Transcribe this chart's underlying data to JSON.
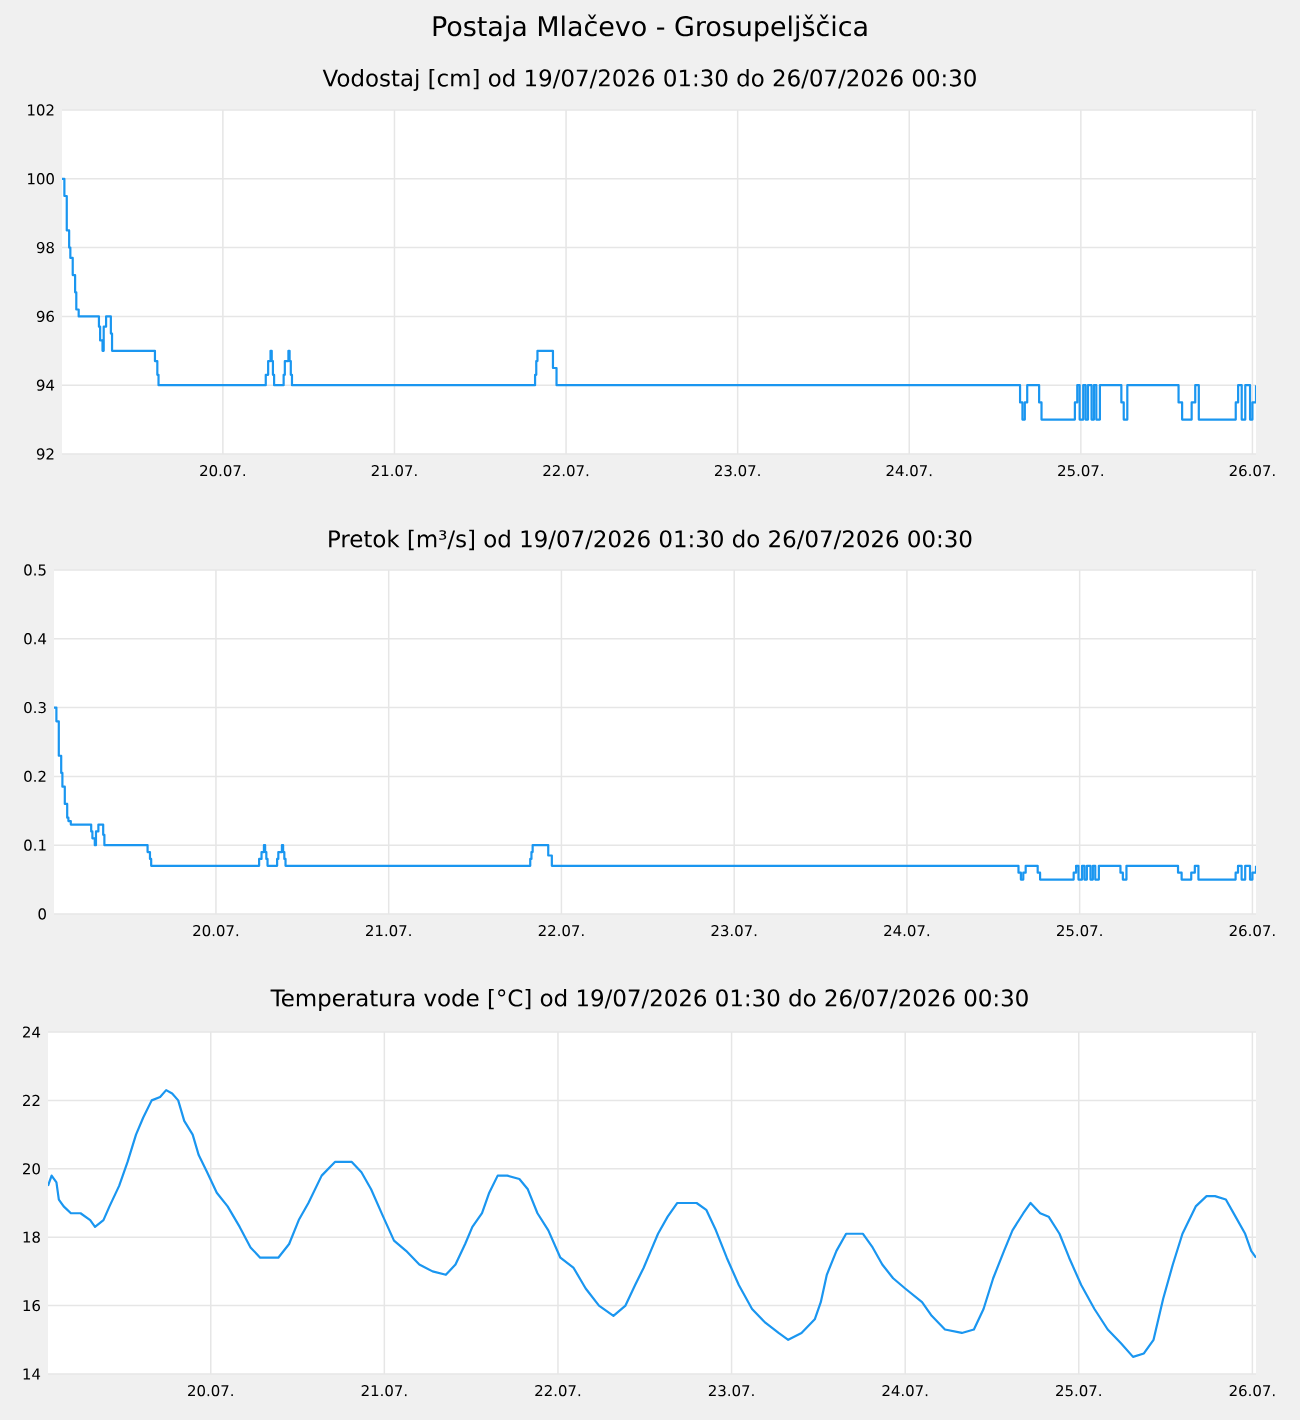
{
  "chart_data": [
    {
      "type": "step",
      "title": "Postaja Mlačevo - Grosupeljščica",
      "subtitle": "Vodostaj [cm] od 19/07/2026 01:30 do 26/07/2026 00:30",
      "color": "#1a96f0",
      "grid": true,
      "xlim": [
        "2026-07-19T01:30",
        "2026-07-26T00:30"
      ],
      "ylim": [
        92,
        102
      ],
      "yticks": [
        92,
        94,
        96,
        98,
        100,
        102
      ],
      "xticks": [
        {
          "value": "2026-07-20",
          "label": "20.07."
        },
        {
          "value": "2026-07-21",
          "label": "21.07."
        },
        {
          "value": "2026-07-22",
          "label": "22.07."
        },
        {
          "value": "2026-07-23",
          "label": "23.07."
        },
        {
          "value": "2026-07-24",
          "label": "24.07."
        },
        {
          "value": "2026-07-25",
          "label": "25.07."
        },
        {
          "value": "2026-07-26",
          "label": "26.07."
        }
      ],
      "x": [
        "2026-07-19T01:30",
        "2026-07-19T01:50",
        "2026-07-19T02:10",
        "2026-07-19T02:30",
        "2026-07-19T02:40",
        "2026-07-19T03:00",
        "2026-07-19T03:20",
        "2026-07-19T03:30",
        "2026-07-19T03:50",
        "2026-07-19T06:40",
        "2026-07-19T06:50",
        "2026-07-19T07:10",
        "2026-07-19T07:20",
        "2026-07-19T07:40",
        "2026-07-19T08:20",
        "2026-07-19T08:30",
        "2026-07-19T14:30",
        "2026-07-19T14:50",
        "2026-07-19T15:00",
        "2026-07-20T06:00",
        "2026-07-20T06:20",
        "2026-07-20T06:40",
        "2026-07-20T06:50",
        "2026-07-20T07:00",
        "2026-07-20T07:10",
        "2026-07-20T08:30",
        "2026-07-20T08:40",
        "2026-07-20T09:10",
        "2026-07-20T09:20",
        "2026-07-20T09:30",
        "2026-07-20T09:40",
        "2026-07-21T19:40",
        "2026-07-21T19:50",
        "2026-07-21T20:00",
        "2026-07-21T22:10",
        "2026-07-21T22:40",
        "2026-07-24T15:30",
        "2026-07-24T15:50",
        "2026-07-24T16:10",
        "2026-07-24T16:30",
        "2026-07-24T18:10",
        "2026-07-24T18:30",
        "2026-07-24T23:10",
        "2026-07-24T23:30",
        "2026-07-24T23:50",
        "2026-07-25T00:20",
        "2026-07-25T00:40",
        "2026-07-25T01:00",
        "2026-07-25T01:30",
        "2026-07-25T01:50",
        "2026-07-25T02:10",
        "2026-07-25T02:40",
        "2026-07-25T05:40",
        "2026-07-25T06:00",
        "2026-07-25T06:30",
        "2026-07-25T13:40",
        "2026-07-25T14:10",
        "2026-07-25T15:30",
        "2026-07-25T16:00",
        "2026-07-25T16:30",
        "2026-07-25T21:40",
        "2026-07-25T22:00",
        "2026-07-25T22:30",
        "2026-07-25T23:00",
        "2026-07-25T23:40",
        "2026-07-26T00:00",
        "2026-07-26T00:30"
      ],
      "values": [
        100,
        99.5,
        98.5,
        98,
        97.7,
        97.2,
        96.7,
        96.2,
        96,
        95.7,
        95.3,
        95,
        95.7,
        96,
        95.5,
        95,
        94.7,
        94.3,
        94,
        94.3,
        94.7,
        95,
        94.7,
        94.3,
        94,
        94.3,
        94.7,
        95,
        94.7,
        94.3,
        94,
        94.3,
        94.7,
        95,
        94.5,
        94,
        93.5,
        93,
        93.5,
        94,
        93.5,
        93,
        93.5,
        94,
        93,
        94,
        93,
        94,
        93,
        94,
        93,
        94,
        93.5,
        93,
        94,
        93.5,
        93,
        93.5,
        94,
        93,
        93.5,
        94,
        93,
        94,
        93,
        93.5,
        94
      ]
    },
    {
      "type": "step",
      "title": "Pretok [m³/s] od 19/07/2026 01:30 do 26/07/2026 00:30",
      "color": "#1a96f0",
      "grid": true,
      "xlim": [
        "2026-07-19T01:30",
        "2026-07-26T00:30"
      ],
      "ylim": [
        0,
        0.5
      ],
      "yticks": [
        0,
        0.1,
        0.2,
        0.3,
        0.4,
        0.5
      ],
      "xticks": [
        {
          "value": "2026-07-20",
          "label": "20.07."
        },
        {
          "value": "2026-07-21",
          "label": "21.07."
        },
        {
          "value": "2026-07-22",
          "label": "22.07."
        },
        {
          "value": "2026-07-23",
          "label": "23.07."
        },
        {
          "value": "2026-07-24",
          "label": "24.07."
        },
        {
          "value": "2026-07-25",
          "label": "25.07."
        },
        {
          "value": "2026-07-26",
          "label": "26.07."
        }
      ],
      "x": [
        "2026-07-19T01:30",
        "2026-07-19T01:50",
        "2026-07-19T02:10",
        "2026-07-19T02:30",
        "2026-07-19T02:40",
        "2026-07-19T03:00",
        "2026-07-19T03:20",
        "2026-07-19T03:30",
        "2026-07-19T03:50",
        "2026-07-19T06:40",
        "2026-07-19T06:50",
        "2026-07-19T07:10",
        "2026-07-19T07:20",
        "2026-07-19T07:40",
        "2026-07-19T08:20",
        "2026-07-19T08:30",
        "2026-07-19T14:30",
        "2026-07-19T14:50",
        "2026-07-19T15:00",
        "2026-07-20T06:00",
        "2026-07-20T06:20",
        "2026-07-20T06:40",
        "2026-07-20T06:50",
        "2026-07-20T07:00",
        "2026-07-20T07:10",
        "2026-07-20T08:30",
        "2026-07-20T08:40",
        "2026-07-20T09:10",
        "2026-07-20T09:20",
        "2026-07-20T09:30",
        "2026-07-20T09:40",
        "2026-07-21T19:40",
        "2026-07-21T19:50",
        "2026-07-21T20:00",
        "2026-07-21T22:10",
        "2026-07-21T22:40",
        "2026-07-24T15:30",
        "2026-07-24T15:50",
        "2026-07-24T16:10",
        "2026-07-24T16:30",
        "2026-07-24T18:10",
        "2026-07-24T18:30",
        "2026-07-24T23:10",
        "2026-07-24T23:30",
        "2026-07-24T23:50",
        "2026-07-25T00:20",
        "2026-07-25T00:40",
        "2026-07-25T01:00",
        "2026-07-25T01:30",
        "2026-07-25T01:50",
        "2026-07-25T02:10",
        "2026-07-25T02:40",
        "2026-07-25T05:40",
        "2026-07-25T06:00",
        "2026-07-25T06:30",
        "2026-07-25T13:40",
        "2026-07-25T14:10",
        "2026-07-25T15:30",
        "2026-07-25T16:00",
        "2026-07-25T16:30",
        "2026-07-25T21:40",
        "2026-07-25T22:00",
        "2026-07-25T22:30",
        "2026-07-25T23:00",
        "2026-07-25T23:40",
        "2026-07-26T00:00",
        "2026-07-26T00:30"
      ],
      "values": [
        0.3,
        0.28,
        0.23,
        0.205,
        0.185,
        0.16,
        0.14,
        0.135,
        0.13,
        0.12,
        0.11,
        0.1,
        0.12,
        0.13,
        0.115,
        0.1,
        0.09,
        0.08,
        0.07,
        0.08,
        0.09,
        0.1,
        0.09,
        0.08,
        0.07,
        0.08,
        0.09,
        0.1,
        0.09,
        0.08,
        0.07,
        0.08,
        0.09,
        0.1,
        0.085,
        0.07,
        0.06,
        0.05,
        0.06,
        0.07,
        0.06,
        0.05,
        0.06,
        0.07,
        0.05,
        0.07,
        0.05,
        0.07,
        0.05,
        0.07,
        0.05,
        0.07,
        0.06,
        0.05,
        0.07,
        0.06,
        0.05,
        0.06,
        0.07,
        0.05,
        0.06,
        0.07,
        0.05,
        0.07,
        0.05,
        0.06,
        0.07
      ]
    },
    {
      "type": "line",
      "title": "Temperatura vode [°C] od 19/07/2026 01:30 do 26/07/2026 00:30",
      "color": "#1a96f0",
      "grid": true,
      "xlim": [
        "2026-07-19T01:30",
        "2026-07-26T00:30"
      ],
      "ylim": [
        14,
        24
      ],
      "yticks": [
        14,
        16,
        18,
        20,
        22,
        24
      ],
      "xticks": [
        {
          "value": "2026-07-20",
          "label": "20.07."
        },
        {
          "value": "2026-07-21",
          "label": "21.07."
        },
        {
          "value": "2026-07-22",
          "label": "22.07."
        },
        {
          "value": "2026-07-23",
          "label": "23.07."
        },
        {
          "value": "2026-07-24",
          "label": "24.07."
        },
        {
          "value": "2026-07-25",
          "label": "25.07."
        },
        {
          "value": "2026-07-26",
          "label": "26.07."
        }
      ],
      "x": [
        "2026-07-19T01:30",
        "2026-07-19T02:00",
        "2026-07-19T02:40",
        "2026-07-19T03:00",
        "2026-07-19T03:40",
        "2026-07-19T04:40",
        "2026-07-19T06:00",
        "2026-07-19T06:40",
        "2026-07-19T07:20",
        "2026-07-19T08:00",
        "2026-07-19T09:10",
        "2026-07-19T10:00",
        "2026-07-19T11:20",
        "2026-07-19T12:30",
        "2026-07-19T13:40",
        "2026-07-19T14:40",
        "2026-07-19T15:50",
        "2026-07-19T17:00",
        "2026-07-19T17:50",
        "2026-07-19T18:40",
        "2026-07-19T19:30",
        "2026-07-19T20:20",
        "2026-07-19T21:30",
        "2026-07-19T22:20",
        "2026-07-19T23:30",
        "2026-07-20T00:50",
        "2026-07-20T02:20",
        "2026-07-20T04:00",
        "2026-07-20T05:30",
        "2026-07-20T06:50",
        "2026-07-20T09:20",
        "2026-07-20T10:50",
        "2026-07-20T12:10",
        "2026-07-20T13:30",
        "2026-07-20T15:20",
        "2026-07-20T17:10",
        "2026-07-20T19:30",
        "2026-07-20T20:50",
        "2026-07-20T22:10",
        "2026-07-20T23:50",
        "2026-07-21T01:20",
        "2026-07-21T03:00",
        "2026-07-21T04:50",
        "2026-07-21T06:40",
        "2026-07-21T08:30",
        "2026-07-21T09:50",
        "2026-07-21T11:10",
        "2026-07-21T12:10",
        "2026-07-21T13:30",
        "2026-07-21T14:30",
        "2026-07-21T15:40",
        "2026-07-21T17:00",
        "2026-07-21T18:40",
        "2026-07-21T19:50",
        "2026-07-21T21:10",
        "2026-07-21T22:40",
        "2026-07-22T00:20",
        "2026-07-22T02:10",
        "2026-07-22T03:50",
        "2026-07-22T05:40",
        "2026-07-22T07:40",
        "2026-07-22T09:20",
        "2026-07-22T10:40",
        "2026-07-22T11:50",
        "2026-07-22T12:50",
        "2026-07-22T13:50",
        "2026-07-22T15:10",
        "2026-07-22T16:30",
        "2026-07-22T19:10",
        "2026-07-22T20:30",
        "2026-07-22T21:50",
        "2026-07-22T23:20",
        "2026-07-23T01:00",
        "2026-07-23T02:50",
        "2026-07-23T04:40",
        "2026-07-23T06:30",
        "2026-07-23T07:50",
        "2026-07-23T09:40",
        "2026-07-23T11:30",
        "2026-07-23T12:20",
        "2026-07-23T13:10",
        "2026-07-23T14:30",
        "2026-07-23T15:50",
        "2026-07-23T18:10",
        "2026-07-23T19:30",
        "2026-07-23T20:50",
        "2026-07-23T22:20",
        "2026-07-24T00:00",
        "2026-07-24T02:20",
        "2026-07-24T03:40",
        "2026-07-24T05:30",
        "2026-07-24T07:50",
        "2026-07-24T09:30",
        "2026-07-24T10:50",
        "2026-07-24T12:10",
        "2026-07-24T13:40",
        "2026-07-24T14:50",
        "2026-07-24T16:20",
        "2026-07-24T17:20",
        "2026-07-24T18:40",
        "2026-07-24T19:50",
        "2026-07-24T21:20",
        "2026-07-24T22:40",
        "2026-07-25T00:20",
        "2026-07-25T02:10",
        "2026-07-25T04:00",
        "2026-07-25T05:50",
        "2026-07-25T07:30",
        "2026-07-25T09:00",
        "2026-07-25T10:20",
        "2026-07-25T11:40",
        "2026-07-25T13:00",
        "2026-07-25T14:20",
        "2026-07-25T16:10",
        "2026-07-25T17:40",
        "2026-07-25T18:50",
        "2026-07-25T20:20",
        "2026-07-25T21:40",
        "2026-07-25T23:00",
        "2026-07-25T23:50",
        "2026-07-26T00:30"
      ],
      "values": [
        19.5,
        19.8,
        19.6,
        19.1,
        18.9,
        18.7,
        18.7,
        18.6,
        18.5,
        18.3,
        18.5,
        18.9,
        19.5,
        20.2,
        21.0,
        21.5,
        22.0,
        22.1,
        22.3,
        22.2,
        22.0,
        21.4,
        21.0,
        20.4,
        19.9,
        19.3,
        18.9,
        18.3,
        17.7,
        17.4,
        17.4,
        17.8,
        18.5,
        19.0,
        19.8,
        20.2,
        20.2,
        19.9,
        19.4,
        18.6,
        17.9,
        17.6,
        17.2,
        17.0,
        16.9,
        17.2,
        17.8,
        18.3,
        18.7,
        19.3,
        19.8,
        19.8,
        19.7,
        19.4,
        18.7,
        18.2,
        17.4,
        17.1,
        16.5,
        16.0,
        15.7,
        16.0,
        16.6,
        17.1,
        17.6,
        18.1,
        18.6,
        19.0,
        19.0,
        18.8,
        18.2,
        17.4,
        16.6,
        15.9,
        15.5,
        15.2,
        15.0,
        15.2,
        15.6,
        16.1,
        16.9,
        17.6,
        18.1,
        18.1,
        17.7,
        17.2,
        16.8,
        16.5,
        16.1,
        15.7,
        15.3,
        15.2,
        15.3,
        15.9,
        16.8,
        17.6,
        18.2,
        18.7,
        19.0,
        18.7,
        18.6,
        18.1,
        17.4,
        16.6,
        15.9,
        15.3,
        14.9,
        14.5,
        14.6,
        15.0,
        16.2,
        17.2,
        18.1,
        18.9,
        19.2,
        19.2,
        19.1,
        18.6,
        18.1,
        17.6,
        17.4
      ]
    }
  ]
}
